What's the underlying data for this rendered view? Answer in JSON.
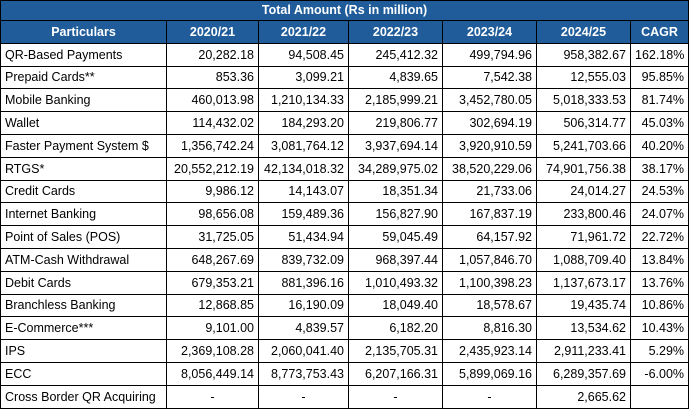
{
  "table": {
    "banner": "Total Amount (Rs in million)",
    "columns": [
      "Particulars",
      "2020/21",
      "2021/22",
      "2022/23",
      "2023/24",
      "2024/25",
      "CAGR"
    ],
    "rows": [
      [
        "QR-Based Payments",
        "20,282.18",
        "94,508.45",
        "245,412.32",
        "499,794.96",
        "958,382.67",
        "162.18%"
      ],
      [
        "Prepaid Cards**",
        "853.36",
        "3,099.21",
        "4,839.65",
        "7,542.38",
        "12,555.03",
        "95.85%"
      ],
      [
        "Mobile Banking",
        "460,013.98",
        "1,210,134.33",
        "2,185,999.21",
        "3,452,780.05",
        "5,018,333.53",
        "81.74%"
      ],
      [
        "Wallet",
        "114,432.02",
        "184,293.20",
        "219,806.77",
        "302,694.19",
        "506,314.77",
        "45.03%"
      ],
      [
        "Faster Payment System $",
        "1,356,742.24",
        "3,081,764.12",
        "3,937,694.14",
        "3,920,910.59",
        "5,241,703.66",
        "40.20%"
      ],
      [
        "RTGS*",
        "20,552,212.19",
        "42,134,018.32",
        "34,289,975.02",
        "38,520,229.06",
        "74,901,756.38",
        "38.17%"
      ],
      [
        "Credit Cards",
        "9,986.12",
        "14,143.07",
        "18,351.34",
        "21,733.06",
        "24,014.27",
        "24.53%"
      ],
      [
        "Internet Banking",
        "98,656.08",
        "159,489.36",
        "156,827.90",
        "167,837.19",
        "233,800.46",
        "24.07%"
      ],
      [
        "Point of Sales (POS)",
        "31,725.05",
        "51,434.94",
        "59,045.49",
        "64,157.92",
        "71,961.72",
        "22.72%"
      ],
      [
        "ATM-Cash Withdrawal",
        "648,267.69",
        "839,732.09",
        "968,397.44",
        "1,057,846.70",
        "1,088,709.40",
        "13.84%"
      ],
      [
        "Debit Cards",
        "679,353.21",
        "881,396.16",
        "1,010,493.32",
        "1,100,398.23",
        "1,137,673.17",
        "13.76%"
      ],
      [
        "Branchless Banking",
        "12,868.85",
        "16,190.09",
        "18,049.40",
        "18,578.67",
        "19,435.74",
        "10.86%"
      ],
      [
        "E-Commerce***",
        "9,101.00",
        "4,839.57",
        "6,182.20",
        "8,816.30",
        "13,534.62",
        "10.43%"
      ],
      [
        "IPS",
        "2,369,108.28",
        "2,060,041.40",
        "2,135,705.31",
        "2,435,923.14",
        "2,911,233.41",
        "5.29%"
      ],
      [
        "ECC",
        "8,056,449.14",
        "8,773,753.43",
        "6,207,166.31",
        "5,899,069.16",
        "6,289,357.69",
        "-6.00%"
      ],
      [
        "Cross Border QR Acquiring",
        "-",
        "-",
        "-",
        "-",
        "2,665.62",
        ""
      ]
    ]
  }
}
